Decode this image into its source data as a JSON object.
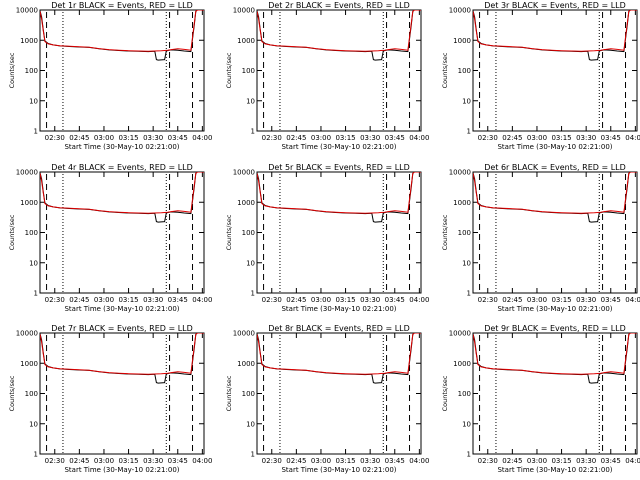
{
  "chart_data": [
    {
      "type": "line",
      "title": "Det 1r BLACK = Events, RED = LLD",
      "xlabel": "Start Time (30-May-10 02:21:00)",
      "ylabel": "Counts/sec"
    },
    {
      "type": "line",
      "title": "Det 2r BLACK = Events, RED = LLD",
      "xlabel": "Start Time (30-May-10 02:21:00)",
      "ylabel": "Counts/sec"
    },
    {
      "type": "line",
      "title": "Det 3r BLACK = Events, RED = LLD",
      "xlabel": "Start Time (30-May-10 02:21:00)",
      "ylabel": "Counts/sec"
    },
    {
      "type": "line",
      "title": "Det 4r BLACK = Events, RED = LLD",
      "xlabel": "Start Time (30-May-10 02:21:00)",
      "ylabel": "Counts/sec"
    },
    {
      "type": "line",
      "title": "Det 5r BLACK = Events, RED = LLD",
      "xlabel": "Start Time (30-May-10 02:21:00)",
      "ylabel": "Counts/sec"
    },
    {
      "type": "line",
      "title": "Det 6r BLACK = Events, RED = LLD",
      "xlabel": "Start Time (30-May-10 02:21:00)",
      "ylabel": "Counts/sec"
    },
    {
      "type": "line",
      "title": "Det 7r BLACK = Events, RED = LLD",
      "xlabel": "Start Time (30-May-10 02:21:00)",
      "ylabel": "Counts/sec"
    },
    {
      "type": "line",
      "title": "Det 8r BLACK = Events, RED = LLD",
      "xlabel": "Start Time (30-May-10 02:21:00)",
      "ylabel": "Counts/sec"
    },
    {
      "type": "line",
      "title": "Det 9r BLACK = Events, RED = LLD",
      "xlabel": "Start Time (30-May-10 02:21:00)",
      "ylabel": "Counts/sec"
    }
  ],
  "shared": {
    "x_ticks": [
      "02:30",
      "02:45",
      "03:00",
      "03:15",
      "03:30",
      "03:45",
      "04:00"
    ],
    "x_tick_minutes": [
      9,
      24,
      39,
      54,
      69,
      84,
      99
    ],
    "xlim_minutes": [
      0,
      100
    ],
    "ylim": [
      1,
      10000
    ],
    "yscale": "log",
    "y_ticks": [
      "1",
      "10",
      "100",
      "1000",
      "10000"
    ],
    "y_tick_values": [
      1,
      10,
      100,
      1000,
      10000
    ],
    "dashed_lines_minutes": [
      4,
      79,
      93
    ],
    "dotted_lines_minutes": [
      14,
      77
    ],
    "events_color": "#000000",
    "lld_color": "#dd0000",
    "events_series": {
      "x": [
        0,
        1,
        2,
        3,
        5,
        8,
        12,
        18,
        24,
        30,
        36,
        42,
        48,
        54,
        60,
        66,
        70,
        71,
        72,
        76,
        77,
        78,
        80,
        84,
        88,
        92,
        94,
        95,
        96,
        98,
        100
      ],
      "y": [
        9500,
        6000,
        2200,
        950,
        780,
        700,
        650,
        620,
        600,
        580,
        520,
        480,
        460,
        440,
        430,
        420,
        430,
        230,
        220,
        230,
        440,
        460,
        480,
        470,
        440,
        420,
        3000,
        9000,
        10000,
        10000,
        10000
      ]
    },
    "lld_series": {
      "x": [
        0,
        1,
        2,
        3,
        5,
        8,
        12,
        18,
        24,
        30,
        36,
        42,
        48,
        54,
        60,
        66,
        70,
        74,
        78,
        80,
        84,
        88,
        92,
        94,
        95,
        96,
        98,
        100
      ],
      "y": [
        9000,
        5000,
        2000,
        900,
        760,
        700,
        660,
        630,
        610,
        590,
        530,
        490,
        470,
        450,
        440,
        430,
        440,
        450,
        470,
        490,
        520,
        500,
        470,
        3500,
        9000,
        10000,
        10000,
        10000
      ]
    }
  }
}
